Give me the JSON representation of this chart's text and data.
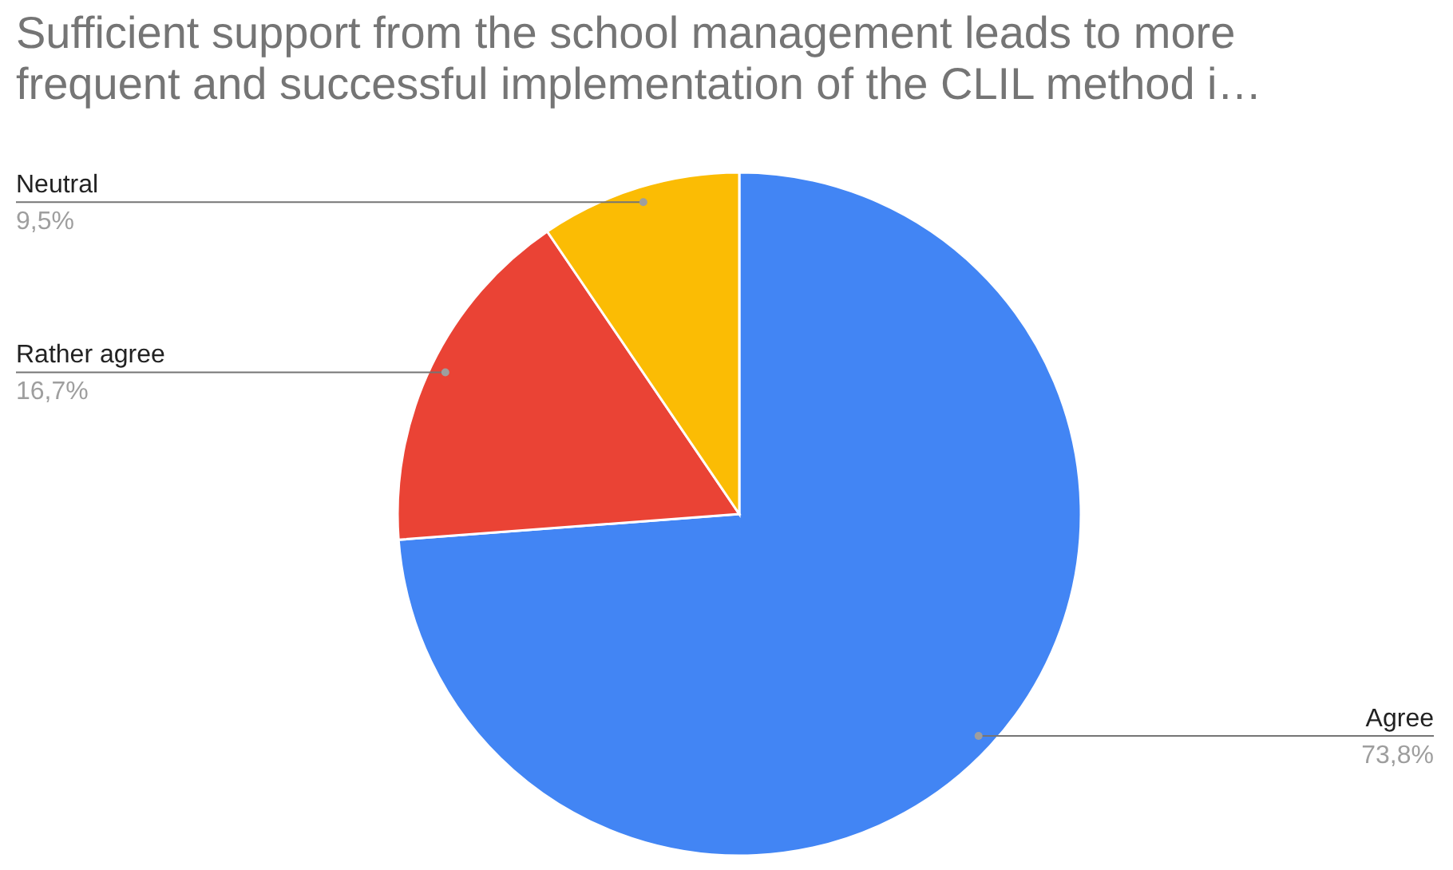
{
  "chart_data": {
    "type": "pie",
    "title": "Sufficient support from the school management leads to more frequent and successful implementation of the CLIL method i…",
    "categories": [
      "Agree",
      "Rather agree",
      "Neutral"
    ],
    "values": [
      73.8,
      16.7,
      9.5
    ],
    "value_labels": [
      "73,8%",
      "16,7%",
      "9,5%"
    ],
    "colors": [
      "#4285f4",
      "#ea4335",
      "#fbbc04"
    ]
  }
}
